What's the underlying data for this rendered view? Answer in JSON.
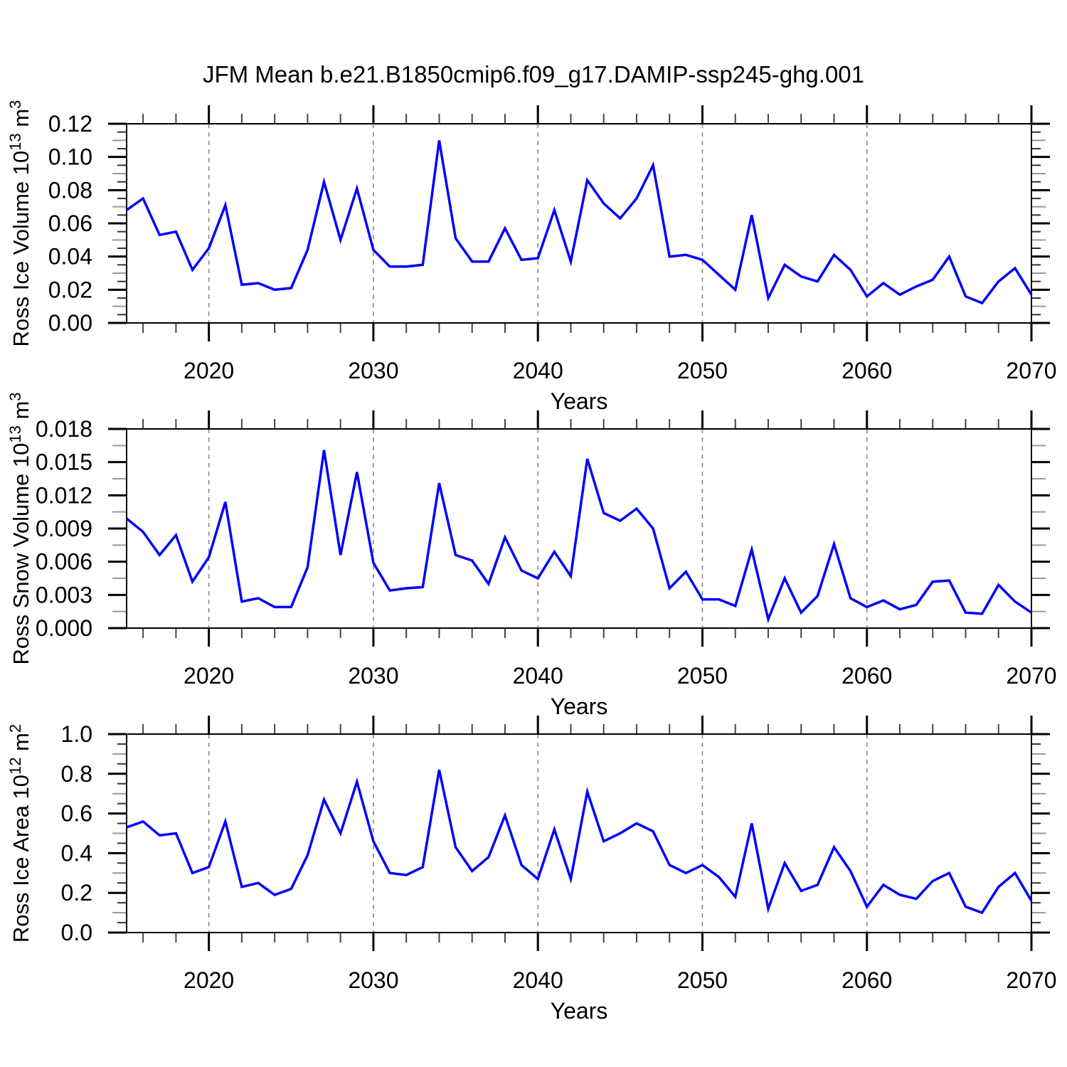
{
  "title": "JFM Mean b.e21.B1850cmip6.f09_g17.DAMIP-ssp245-ghg.001",
  "line_color": "#0000ff",
  "grid_color": "#808080",
  "chart_data": [
    {
      "type": "line",
      "title": "",
      "xlabel": "Years",
      "ylabel": {
        "text": "Ross Ice Volume",
        "scale_base": "10",
        "scale_exp": "13",
        "unit": "m",
        "unit_exp": "3"
      },
      "x": [
        2015,
        2016,
        2017,
        2018,
        2019,
        2020,
        2021,
        2022,
        2023,
        2024,
        2025,
        2026,
        2027,
        2028,
        2029,
        2030,
        2031,
        2032,
        2033,
        2034,
        2035,
        2036,
        2037,
        2038,
        2039,
        2040,
        2041,
        2042,
        2043,
        2044,
        2045,
        2046,
        2047,
        2048,
        2049,
        2050,
        2051,
        2052,
        2053,
        2054,
        2055,
        2056,
        2057,
        2058,
        2059,
        2060,
        2061,
        2062,
        2063,
        2064,
        2065,
        2066,
        2067,
        2068,
        2069,
        2070
      ],
      "values": [
        0.068,
        0.075,
        0.053,
        0.055,
        0.032,
        0.045,
        0.071,
        0.023,
        0.024,
        0.02,
        0.021,
        0.044,
        0.085,
        0.05,
        0.081,
        0.044,
        0.034,
        0.034,
        0.035,
        0.11,
        0.051,
        0.037,
        0.037,
        0.057,
        0.038,
        0.039,
        0.068,
        0.037,
        0.086,
        0.072,
        0.063,
        0.075,
        0.095,
        0.04,
        0.041,
        0.038,
        0.029,
        0.02,
        0.065,
        0.015,
        0.035,
        0.028,
        0.025,
        0.041,
        0.032,
        0.016,
        0.024,
        0.017,
        0.022,
        0.026,
        0.04,
        0.016,
        0.012,
        0.025,
        0.033,
        0.017
      ],
      "xlim": [
        2015,
        2070
      ],
      "ylim": [
        0,
        0.12
      ],
      "xticks": [
        2020,
        2030,
        2040,
        2050,
        2060,
        2070
      ],
      "xminor_step": 2,
      "ytick_labels": [
        "0.00",
        "0.02",
        "0.04",
        "0.06",
        "0.08",
        "0.10",
        "0.12"
      ],
      "ytick_step": 0.02,
      "yminor_step": 0.005,
      "grid_x": [
        2020,
        2030,
        2040,
        2050,
        2060
      ],
      "grid_style": "dashed-vertical"
    },
    {
      "type": "line",
      "title": "",
      "xlabel": "Years",
      "ylabel": {
        "text": "Ross Snow Volume",
        "scale_base": "10",
        "scale_exp": "13",
        "unit": "m",
        "unit_exp": "3"
      },
      "x": [
        2015,
        2016,
        2017,
        2018,
        2019,
        2020,
        2021,
        2022,
        2023,
        2024,
        2025,
        2026,
        2027,
        2028,
        2029,
        2030,
        2031,
        2032,
        2033,
        2034,
        2035,
        2036,
        2037,
        2038,
        2039,
        2040,
        2041,
        2042,
        2043,
        2044,
        2045,
        2046,
        2047,
        2048,
        2049,
        2050,
        2051,
        2052,
        2053,
        2054,
        2055,
        2056,
        2057,
        2058,
        2059,
        2060,
        2061,
        2062,
        2063,
        2064,
        2065,
        2066,
        2067,
        2068,
        2069,
        2070
      ],
      "values": [
        0.0099,
        0.0087,
        0.0066,
        0.0084,
        0.0042,
        0.0064,
        0.0114,
        0.0024,
        0.0027,
        0.0019,
        0.0019,
        0.0055,
        0.0161,
        0.0066,
        0.0141,
        0.0059,
        0.0034,
        0.0036,
        0.0037,
        0.0131,
        0.0066,
        0.0061,
        0.004,
        0.0082,
        0.0052,
        0.0045,
        0.0069,
        0.0047,
        0.0153,
        0.0104,
        0.0097,
        0.0108,
        0.009,
        0.0036,
        0.0051,
        0.0026,
        0.0026,
        0.002,
        0.0071,
        0.0008,
        0.0045,
        0.0014,
        0.0029,
        0.0076,
        0.0027,
        0.0019,
        0.0025,
        0.0017,
        0.0021,
        0.0042,
        0.0043,
        0.0014,
        0.0013,
        0.0039,
        0.0024,
        0.0014
      ],
      "xlim": [
        2015,
        2070
      ],
      "ylim": [
        0,
        0.018
      ],
      "xticks": [
        2020,
        2030,
        2040,
        2050,
        2060,
        2070
      ],
      "xminor_step": 2,
      "ytick_labels": [
        "0.000",
        "0.003",
        "0.006",
        "0.009",
        "0.012",
        "0.015",
        "0.018"
      ],
      "ytick_step": 0.003,
      "yminor_step": 0.0015,
      "grid_x": [
        2020,
        2030,
        2040,
        2050,
        2060
      ],
      "grid_style": "dashed-vertical"
    },
    {
      "type": "line",
      "title": "",
      "xlabel": "Years",
      "ylabel": {
        "text": "Ross Ice Area",
        "scale_base": "10",
        "scale_exp": "12",
        "unit": "m",
        "unit_exp": "2"
      },
      "x": [
        2015,
        2016,
        2017,
        2018,
        2019,
        2020,
        2021,
        2022,
        2023,
        2024,
        2025,
        2026,
        2027,
        2028,
        2029,
        2030,
        2031,
        2032,
        2033,
        2034,
        2035,
        2036,
        2037,
        2038,
        2039,
        2040,
        2041,
        2042,
        2043,
        2044,
        2045,
        2046,
        2047,
        2048,
        2049,
        2050,
        2051,
        2052,
        2053,
        2054,
        2055,
        2056,
        2057,
        2058,
        2059,
        2060,
        2061,
        2062,
        2063,
        2064,
        2065,
        2066,
        2067,
        2068,
        2069,
        2070
      ],
      "values": [
        0.53,
        0.56,
        0.49,
        0.5,
        0.3,
        0.33,
        0.56,
        0.23,
        0.25,
        0.19,
        0.22,
        0.39,
        0.67,
        0.5,
        0.76,
        0.46,
        0.3,
        0.29,
        0.33,
        0.82,
        0.43,
        0.31,
        0.38,
        0.59,
        0.34,
        0.27,
        0.52,
        0.27,
        0.71,
        0.46,
        0.5,
        0.55,
        0.51,
        0.34,
        0.3,
        0.34,
        0.28,
        0.18,
        0.55,
        0.12,
        0.35,
        0.21,
        0.24,
        0.43,
        0.31,
        0.13,
        0.24,
        0.19,
        0.17,
        0.26,
        0.3,
        0.13,
        0.1,
        0.23,
        0.3,
        0.16
      ],
      "xlim": [
        2015,
        2070
      ],
      "ylim": [
        0,
        1.0
      ],
      "xticks": [
        2020,
        2030,
        2040,
        2050,
        2060,
        2070
      ],
      "xminor_step": 2,
      "ytick_labels": [
        "0.0",
        "0.2",
        "0.4",
        "0.6",
        "0.8",
        "1.0"
      ],
      "ytick_step": 0.2,
      "yminor_step": 0.05,
      "grid_x": [
        2020,
        2030,
        2040,
        2050,
        2060
      ],
      "grid_style": "dashed-vertical"
    }
  ]
}
